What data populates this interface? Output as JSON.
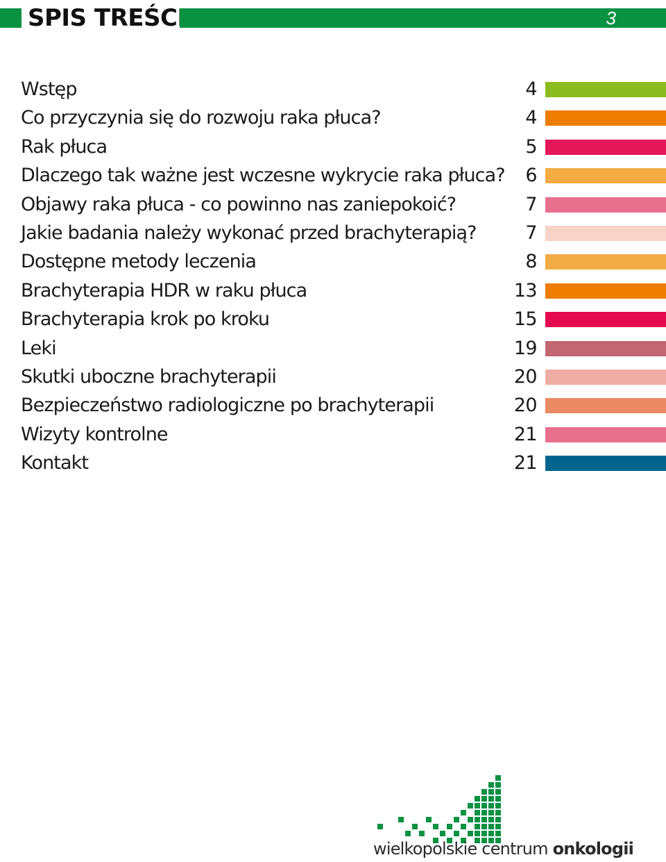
{
  "header": {
    "title": "SPIS TREŚCI",
    "page_number": "3",
    "accent_color": "#0a9142"
  },
  "toc": [
    {
      "label": "Wstęp",
      "page": "4",
      "color": "#8bbb1f"
    },
    {
      "label": "Co przyczynia się do rozwoju raka płuca?",
      "page": "4",
      "color": "#ef7d00"
    },
    {
      "label": "Rak płuca",
      "page": "5",
      "color": "#e3175a"
    },
    {
      "label": "Dlaczego tak ważne jest wczesne wykrycie raka płuca?",
      "page": "6",
      "color": "#f3ac45"
    },
    {
      "label": "Objawy raka płuca - co powinno nas zaniepokoić?",
      "page": "7",
      "color": "#e8708e"
    },
    {
      "label": "Jakie badania należy wykonać przed brachyterapią?",
      "page": "7",
      "color": "#f7d4c7"
    },
    {
      "label": "Dostępne metody leczenia",
      "page": "8",
      "color": "#f3ac45"
    },
    {
      "label": "Brachyterapia HDR w raku płuca",
      "page": "13",
      "color": "#ef7d00"
    },
    {
      "label": "Brachyterapia krok po kroku",
      "page": "15",
      "color": "#e3084f"
    },
    {
      "label": "Leki",
      "page": "19",
      "color": "#c26672"
    },
    {
      "label": "Skutki uboczne brachyterapii",
      "page": "20",
      "color": "#efaca4"
    },
    {
      "label": "Bezpieczeństwo radiologiczne po brachyterapii",
      "page": "20",
      "color": "#ea8a63"
    },
    {
      "label": "Wizyty kontrolne",
      "page": "21",
      "color": "#e8708e"
    },
    {
      "label": "Kontakt",
      "page": "21",
      "color": "#00658e"
    }
  ],
  "logo": {
    "text_regular": "wielkopolskie centrum ",
    "text_bold": "onkologii",
    "mark_color": "#0a9142",
    "mark_icon": "pixel-mosaic-logo-icon"
  }
}
